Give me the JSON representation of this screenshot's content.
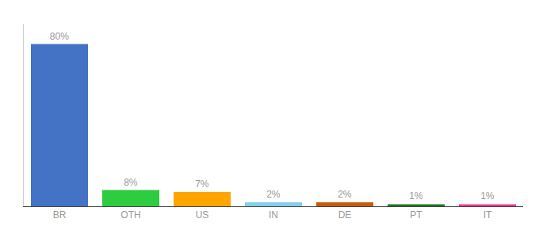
{
  "chart_data": {
    "type": "bar",
    "categories": [
      "BR",
      "OTH",
      "US",
      "IN",
      "DE",
      "PT",
      "IT"
    ],
    "values": [
      80,
      8,
      7,
      2,
      2,
      1,
      1
    ],
    "value_labels": [
      "80%",
      "8%",
      "7%",
      "2%",
      "2%",
      "1%",
      "1%"
    ],
    "colors": [
      "#4472C4",
      "#2ECC40",
      "#FFA500",
      "#87CEEB",
      "#C65C0A",
      "#1A7A1A",
      "#FF3399"
    ],
    "ylim": [
      0,
      90
    ],
    "data_labels": true,
    "tick_labels": "x",
    "grid": false
  }
}
